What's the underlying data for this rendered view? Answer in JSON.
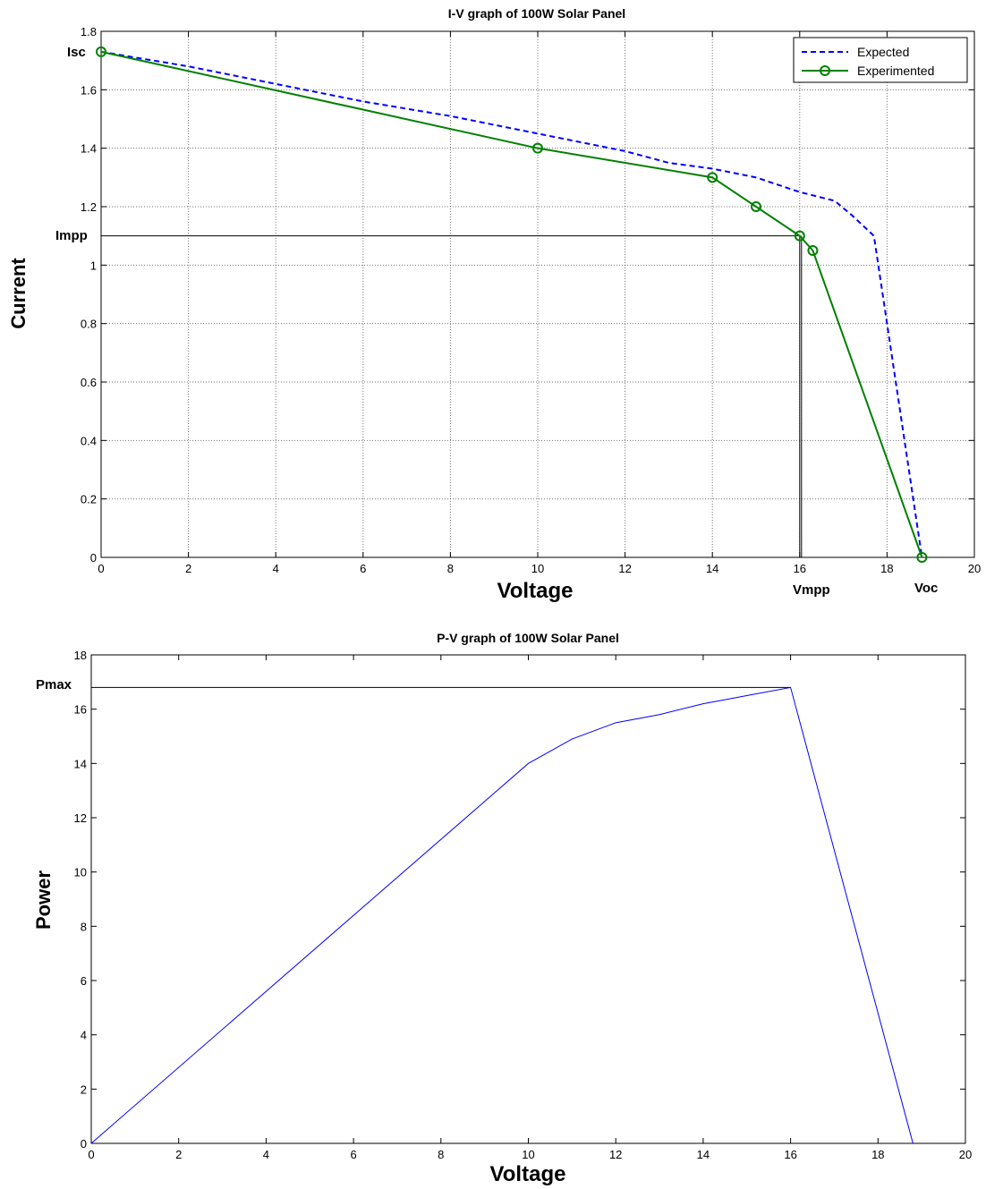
{
  "chart_data": [
    {
      "type": "line",
      "title": "I-V graph of 100W Solar Panel",
      "xlabel": "Voltage",
      "ylabel": "Current",
      "xlim": [
        0,
        20
      ],
      "ylim": [
        0,
        1.8
      ],
      "xticks": [
        "0",
        "2",
        "4",
        "6",
        "8",
        "10",
        "12",
        "14",
        "16",
        "18",
        "20"
      ],
      "yticks": [
        "0",
        "0.2",
        "0.4",
        "0.6",
        "0.8",
        "1",
        "1.2",
        "1.4",
        "1.6",
        "1.8"
      ],
      "grid": true,
      "legend": "top-right",
      "series": [
        {
          "name": "Expected",
          "color": "#0000ff",
          "style": "dashed",
          "x": [
            0,
            2,
            4,
            6,
            8,
            10,
            12,
            13,
            14,
            15,
            16,
            16.8,
            17.2,
            17.7,
            18.8
          ],
          "y": [
            1.73,
            1.68,
            1.62,
            1.56,
            1.51,
            1.45,
            1.39,
            1.35,
            1.33,
            1.3,
            1.25,
            1.22,
            1.17,
            1.1,
            0
          ]
        },
        {
          "name": "Experimented",
          "color": "#008000",
          "style": "solid-circle-markers",
          "x": [
            0,
            10,
            14,
            15,
            16,
            16.3,
            18.8
          ],
          "y": [
            1.73,
            1.4,
            1.3,
            1.2,
            1.1,
            1.05,
            0
          ]
        }
      ],
      "annotations": {
        "isc": {
          "label": "Isc",
          "y": 1.73
        },
        "impp": {
          "label": "Impp",
          "y": 1.1
        },
        "vmpp": {
          "label": "Vmpp",
          "x": 16
        },
        "voc": {
          "label": "Voc",
          "x": 18.8
        }
      }
    },
    {
      "type": "line",
      "title": "P-V graph of 100W Solar Panel",
      "xlabel": "Voltage",
      "ylabel": "Power",
      "xlim": [
        0,
        20
      ],
      "ylim": [
        0,
        18
      ],
      "xticks": [
        "0",
        "2",
        "4",
        "6",
        "8",
        "10",
        "12",
        "14",
        "16",
        "18",
        "20"
      ],
      "yticks": [
        "0",
        "2",
        "4",
        "6",
        "8",
        "10",
        "12",
        "14",
        "16",
        "18"
      ],
      "grid": false,
      "series": [
        {
          "color": "#0000ff",
          "x": [
            0,
            10,
            11,
            12,
            13,
            14,
            15,
            16,
            18.8
          ],
          "y": [
            0,
            14.0,
            14.9,
            15.5,
            15.8,
            16.2,
            16.5,
            16.8,
            0
          ]
        }
      ],
      "annotations": {
        "pmax": {
          "label": "Pmax",
          "y": 16.8
        }
      }
    }
  ]
}
